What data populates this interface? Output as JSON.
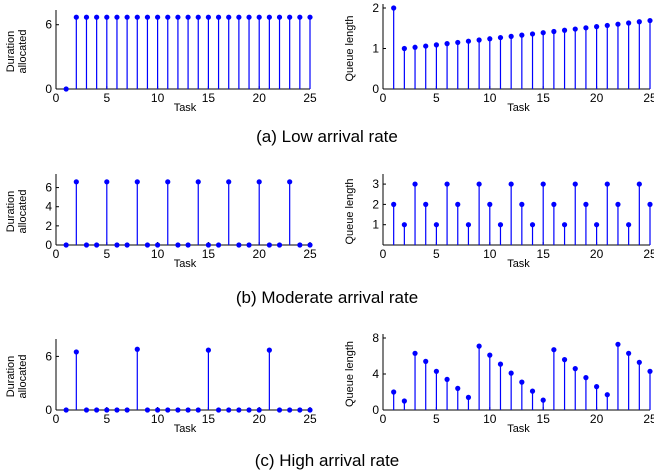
{
  "colors": {
    "stem": "#0000ff",
    "axis": "#000000"
  },
  "chart_data": [
    {
      "type": "stem",
      "xlabel": "Task",
      "ylabel_lines": [
        "Duration",
        "allocated"
      ],
      "xticks": [
        0,
        5,
        10,
        15,
        20,
        25
      ],
      "yticks": [
        0,
        6
      ],
      "xlim": [
        0,
        25
      ],
      "ylim": [
        0,
        7
      ],
      "x": [
        1,
        2,
        3,
        4,
        5,
        6,
        7,
        8,
        9,
        10,
        11,
        12,
        13,
        14,
        15,
        16,
        17,
        18,
        19,
        20,
        21,
        22,
        23,
        24,
        25
      ],
      "values": [
        0,
        6.7,
        6.7,
        6.7,
        6.7,
        6.7,
        6.7,
        6.7,
        6.7,
        6.7,
        6.7,
        6.7,
        6.7,
        6.7,
        6.7,
        6.7,
        6.7,
        6.7,
        6.7,
        6.7,
        6.7,
        6.7,
        6.7,
        6.7,
        6.7
      ]
    },
    {
      "type": "stem",
      "xlabel": "Task",
      "ylabel_lines": [
        "Queue length"
      ],
      "xticks": [
        0,
        5,
        10,
        15,
        20,
        25
      ],
      "yticks": [
        0,
        1,
        2
      ],
      "xlim": [
        0,
        25
      ],
      "ylim": [
        0,
        2
      ],
      "x": [
        1,
        2,
        3,
        4,
        5,
        6,
        7,
        8,
        9,
        10,
        11,
        12,
        13,
        14,
        15,
        16,
        17,
        18,
        19,
        20,
        21,
        22,
        23,
        24,
        25
      ],
      "values": [
        2,
        1.0,
        1.03,
        1.06,
        1.09,
        1.12,
        1.15,
        1.18,
        1.21,
        1.24,
        1.27,
        1.3,
        1.33,
        1.36,
        1.39,
        1.42,
        1.45,
        1.48,
        1.51,
        1.54,
        1.57,
        1.6,
        1.63,
        1.66,
        1.69
      ]
    },
    {
      "type": "stem",
      "xlabel": "Task",
      "ylabel_lines": [
        "Duration",
        "allocated"
      ],
      "xticks": [
        0,
        5,
        10,
        15,
        20,
        25
      ],
      "yticks": [
        0,
        2,
        4,
        6
      ],
      "xlim": [
        0,
        25
      ],
      "ylim": [
        0,
        7
      ],
      "x": [
        1,
        2,
        3,
        4,
        5,
        6,
        7,
        8,
        9,
        10,
        11,
        12,
        13,
        14,
        15,
        16,
        17,
        18,
        19,
        20,
        21,
        22,
        23,
        24,
        25
      ],
      "values": [
        0,
        6.6,
        0,
        0,
        6.6,
        0,
        0,
        6.6,
        0,
        0,
        6.6,
        0,
        0,
        6.6,
        0,
        0,
        6.6,
        0,
        0,
        6.6,
        0,
        0,
        6.6,
        0,
        0
      ]
    },
    {
      "type": "stem",
      "xlabel": "Task",
      "ylabel_lines": [
        "Queue length"
      ],
      "xticks": [
        0,
        5,
        10,
        15,
        20,
        25
      ],
      "yticks": [
        1,
        2,
        3
      ],
      "xlim": [
        0,
        25
      ],
      "ylim": [
        0,
        3.3
      ],
      "x": [
        1,
        2,
        3,
        4,
        5,
        6,
        7,
        8,
        9,
        10,
        11,
        12,
        13,
        14,
        15,
        16,
        17,
        18,
        19,
        20,
        21,
        22,
        23,
        24,
        25
      ],
      "values": [
        2,
        1,
        3,
        2,
        1,
        3,
        2,
        1,
        3,
        2,
        1,
        3,
        2,
        1,
        3,
        2,
        1,
        3,
        2,
        1,
        3,
        2,
        1,
        3,
        2
      ]
    },
    {
      "type": "stem",
      "xlabel": "Task",
      "ylabel_lines": [
        "Duration",
        "allocated"
      ],
      "xticks": [
        0,
        5,
        10,
        15,
        20,
        25
      ],
      "yticks": [
        0,
        6
      ],
      "xlim": [
        0,
        25
      ],
      "ylim": [
        0,
        7.5
      ],
      "x": [
        1,
        2,
        3,
        4,
        5,
        6,
        7,
        8,
        9,
        10,
        11,
        12,
        13,
        14,
        15,
        16,
        17,
        18,
        19,
        20,
        21,
        22,
        23,
        24,
        25
      ],
      "values": [
        0,
        6.5,
        0,
        0,
        0,
        0,
        0,
        6.8,
        0,
        0,
        0,
        0,
        0,
        0,
        6.7,
        0,
        0,
        0,
        0,
        0,
        6.7,
        0,
        0,
        0,
        0
      ]
    },
    {
      "type": "stem",
      "xlabel": "Task",
      "ylabel_lines": [
        "Queue length"
      ],
      "xticks": [
        0,
        5,
        10,
        15,
        20,
        25
      ],
      "yticks": [
        0,
        4,
        8
      ],
      "xlim": [
        0,
        25
      ],
      "ylim": [
        0,
        8
      ],
      "x": [
        1,
        2,
        3,
        4,
        5,
        6,
        7,
        8,
        9,
        10,
        11,
        12,
        13,
        14,
        15,
        16,
        17,
        18,
        19,
        20,
        21,
        22,
        23,
        24,
        25
      ],
      "values": [
        2,
        1,
        6.3,
        5.4,
        4.3,
        3.4,
        2.4,
        1.4,
        7.1,
        6.1,
        5.1,
        4.1,
        3.1,
        2.1,
        1.1,
        6.7,
        5.6,
        4.6,
        3.6,
        2.6,
        1.7,
        7.3,
        6.3,
        5.3,
        4.3
      ]
    }
  ],
  "captions": [
    "(a) Low arrival rate",
    "(b) Moderate arrival rate",
    "(c) High arrival rate"
  ]
}
